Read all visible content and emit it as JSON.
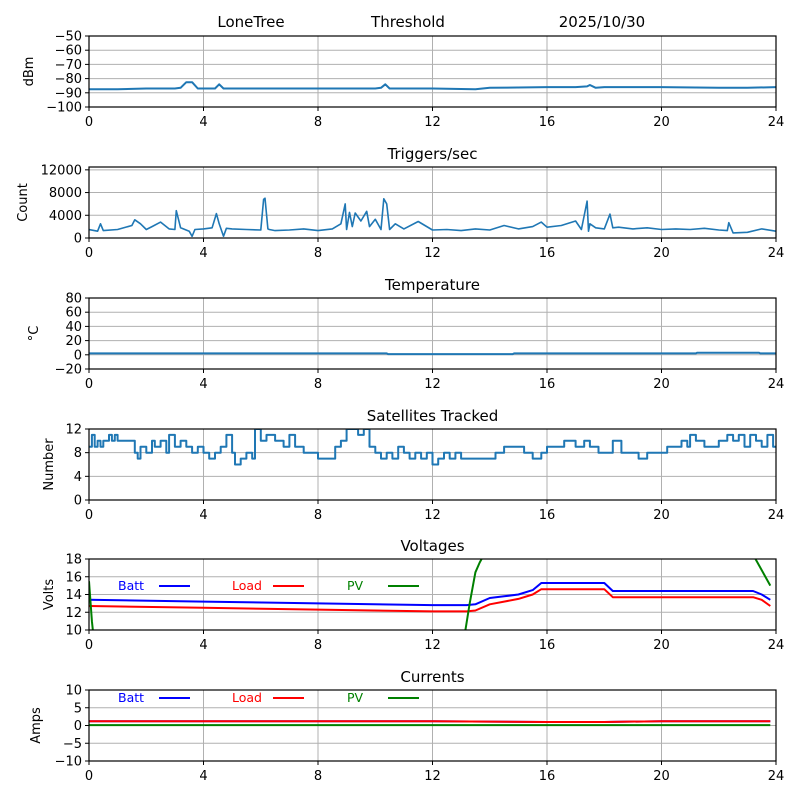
{
  "header": {
    "station": "LoneTree",
    "mode": "Threshold",
    "date": "2025/10/30"
  },
  "colors": {
    "series_default": "#1f77b4",
    "batt": "#0000ff",
    "load": "#ff0000",
    "pv": "#008000",
    "grid": "#b0b0b0"
  },
  "chart_data": [
    {
      "type": "line",
      "id": "threshold",
      "title": "",
      "xlabel": "",
      "ylabel": "dBm",
      "xlim": [
        0,
        24
      ],
      "ylim": [
        -100,
        -50
      ],
      "xticks": [
        0,
        4,
        8,
        12,
        16,
        20,
        24
      ],
      "yticks": [
        -100,
        -90,
        -80,
        -70,
        -60,
        -50
      ],
      "ytick_labels": [
        "−100",
        "−90",
        "−80",
        "−70",
        "−60",
        "−50"
      ],
      "grid": true,
      "series": [
        {
          "name": "Threshold",
          "color": "#1f77b4",
          "x": [
            0,
            1,
            2,
            3,
            3.2,
            3.4,
            3.6,
            3.8,
            4.4,
            4.55,
            4.7,
            6,
            8,
            10,
            10.2,
            10.35,
            10.5,
            12,
            13.5,
            14,
            16,
            17,
            17.4,
            17.5,
            17.7,
            18,
            20,
            22,
            23,
            24
          ],
          "y": [
            -87.5,
            -87.5,
            -87,
            -87,
            -86.5,
            -82.5,
            -82.5,
            -87,
            -87,
            -84,
            -87,
            -87,
            -87,
            -87,
            -86.5,
            -84,
            -87,
            -87,
            -87.5,
            -86.5,
            -86,
            -86,
            -85.5,
            -84.5,
            -86.5,
            -86,
            -86,
            -86.5,
            -86.5,
            -86
          ]
        }
      ]
    },
    {
      "type": "line",
      "id": "triggers",
      "title": "Triggers/sec",
      "xlabel": "",
      "ylabel": "Count",
      "xlim": [
        0,
        24
      ],
      "ylim": [
        0,
        12500
      ],
      "xticks": [
        0,
        4,
        8,
        12,
        16,
        20,
        24
      ],
      "yticks": [
        0,
        4000,
        8000,
        12000
      ],
      "ytick_labels": [
        "0",
        "4000",
        "8000",
        "12000"
      ],
      "grid": true,
      "series": [
        {
          "name": "Triggers",
          "color": "#1f77b4",
          "x": [
            0,
            0.3,
            0.4,
            0.5,
            1,
            1.5,
            1.6,
            1.8,
            2.0,
            2.2,
            2.5,
            2.8,
            3.0,
            3.05,
            3.2,
            3.5,
            3.6,
            3.7,
            4.0,
            4.3,
            4.45,
            4.55,
            4.7,
            4.8,
            5.0,
            5.5,
            6.0,
            6.1,
            6.15,
            6.25,
            6.3,
            6.5,
            7.0,
            7.5,
            8.0,
            8.5,
            8.8,
            8.95,
            9.0,
            9.1,
            9.2,
            9.3,
            9.5,
            9.7,
            9.8,
            10.0,
            10.2,
            10.3,
            10.4,
            10.5,
            10.7,
            11.0,
            11.5,
            12.0,
            12.5,
            13.0,
            13.5,
            14.0,
            14.5,
            15.0,
            15.5,
            15.8,
            16.0,
            16.5,
            17.0,
            17.2,
            17.4,
            17.45,
            17.5,
            17.7,
            18.0,
            18.2,
            18.3,
            18.5,
            19.0,
            19.5,
            20.0,
            20.5,
            21.0,
            21.5,
            22.0,
            22.3,
            22.35,
            22.5,
            23.0,
            23.5,
            24.0
          ],
          "y": [
            1500,
            1200,
            2500,
            1300,
            1500,
            2200,
            3200,
            2500,
            1500,
            2000,
            2800,
            1600,
            1500,
            4800,
            1800,
            1200,
            300,
            1500,
            1600,
            1800,
            4300,
            2500,
            300,
            1700,
            1600,
            1500,
            1400,
            6800,
            7000,
            1600,
            1500,
            1300,
            1400,
            1600,
            1300,
            1600,
            2500,
            6000,
            1500,
            4500,
            2000,
            4400,
            3000,
            4700,
            2000,
            3300,
            1500,
            6900,
            6000,
            1500,
            2500,
            1600,
            2900,
            1400,
            1500,
            1300,
            1600,
            1400,
            2200,
            1600,
            2000,
            2800,
            1900,
            2200,
            3000,
            1500,
            6500,
            1200,
            2500,
            1800,
            1600,
            4200,
            1800,
            1900,
            1600,
            1800,
            1500,
            1600,
            1500,
            1700,
            1400,
            1300,
            2700,
            900,
            1000,
            1600,
            1200
          ]
        }
      ]
    },
    {
      "type": "line",
      "id": "temperature",
      "title": "Temperature",
      "xlabel": "",
      "ylabel": "°C",
      "xlim": [
        0,
        24
      ],
      "ylim": [
        -20,
        80
      ],
      "xticks": [
        0,
        4,
        8,
        12,
        16,
        20,
        24
      ],
      "yticks": [
        -20,
        0,
        20,
        40,
        60,
        80
      ],
      "ytick_labels": [
        "−20",
        "0",
        "20",
        "40",
        "60",
        "80"
      ],
      "grid": true,
      "series": [
        {
          "name": "Temperature",
          "color": "#1f77b4",
          "x": [
            0,
            10.4,
            10.45,
            14.8,
            14.85,
            21.2,
            21.25,
            23.4,
            23.45,
            24
          ],
          "y": [
            2,
            2,
            1,
            1,
            2,
            2,
            3,
            3,
            2,
            2
          ]
        }
      ]
    },
    {
      "type": "line",
      "id": "satellites",
      "title": "Satellites Tracked",
      "xlabel": "",
      "ylabel": "Number",
      "xlim": [
        0,
        24
      ],
      "ylim": [
        0,
        12
      ],
      "xticks": [
        0,
        4,
        8,
        12,
        16,
        20,
        24
      ],
      "yticks": [
        0,
        4,
        8,
        12
      ],
      "ytick_labels": [
        "0",
        "4",
        "8",
        "12"
      ],
      "grid": true,
      "series": [
        {
          "name": "Satellites",
          "color": "#1f77b4",
          "x": [
            0,
            0.1,
            0.2,
            0.3,
            0.4,
            0.5,
            0.7,
            0.8,
            0.9,
            1.0,
            1.1,
            1.5,
            1.6,
            1.7,
            1.8,
            2.0,
            2.2,
            2.3,
            2.5,
            2.7,
            2.8,
            3.0,
            3.2,
            3.4,
            3.6,
            3.8,
            4.0,
            4.2,
            4.4,
            4.6,
            4.8,
            5.0,
            5.1,
            5.3,
            5.5,
            5.7,
            5.8,
            6.0,
            6.2,
            6.5,
            6.8,
            7.0,
            7.2,
            7.5,
            7.8,
            8.0,
            8.2,
            8.4,
            8.6,
            8.8,
            9.0,
            9.4,
            9.6,
            9.8,
            10.0,
            10.2,
            10.4,
            10.6,
            10.8,
            11.0,
            11.2,
            11.4,
            11.6,
            11.8,
            12.0,
            12.2,
            12.4,
            12.6,
            12.8,
            13.0,
            13.5,
            14.0,
            14.2,
            14.5,
            15.0,
            15.2,
            15.5,
            15.8,
            16.0,
            16.3,
            16.6,
            17.0,
            17.3,
            17.5,
            17.8,
            18.0,
            18.3,
            18.6,
            19.0,
            19.2,
            19.5,
            20.0,
            20.2,
            20.5,
            20.7,
            20.9,
            21.0,
            21.2,
            21.5,
            22.0,
            22.3,
            22.5,
            22.7,
            22.9,
            23.1,
            23.3,
            23.5,
            23.7,
            23.9,
            24.0
          ],
          "y": [
            9,
            11,
            9,
            10,
            9,
            10,
            11,
            10,
            11,
            10,
            10,
            10,
            8,
            7,
            9,
            8,
            10,
            9,
            10,
            8,
            11,
            9,
            10,
            9,
            8,
            9,
            8,
            7,
            8,
            9,
            11,
            8,
            6,
            7,
            8,
            7,
            12,
            10,
            11,
            10,
            9,
            11,
            9,
            8,
            8,
            7,
            7,
            7,
            9,
            10,
            12,
            11,
            12,
            9,
            8,
            7,
            8,
            7,
            9,
            8,
            7,
            8,
            7,
            8,
            6,
            7,
            8,
            7,
            8,
            7,
            7,
            7,
            8,
            9,
            9,
            8,
            7,
            8,
            9,
            9,
            10,
            9,
            10,
            9,
            8,
            8,
            10,
            8,
            8,
            7,
            8,
            8,
            9,
            9,
            10,
            9,
            11,
            10,
            9,
            10,
            11,
            10,
            11,
            9,
            11,
            10,
            9,
            11,
            9,
            9
          ]
        }
      ]
    },
    {
      "type": "line",
      "id": "voltages",
      "title": "Voltages",
      "xlabel": "",
      "ylabel": "Volts",
      "xlim": [
        0,
        24
      ],
      "ylim": [
        10,
        18
      ],
      "xticks": [
        0,
        4,
        8,
        12,
        16,
        20,
        24
      ],
      "yticks": [
        10,
        12,
        14,
        16,
        18
      ],
      "ytick_labels": [
        "10",
        "12",
        "14",
        "16",
        "18"
      ],
      "grid": true,
      "legend": {
        "placement": "top-inline",
        "entries": [
          "Batt",
          "Load",
          "PV"
        ]
      },
      "series": [
        {
          "name": "Batt",
          "color": "#0000ff",
          "x": [
            0,
            4,
            8,
            12,
            13.2,
            13.5,
            14.0,
            14.5,
            15.0,
            15.5,
            15.8,
            18.0,
            18.3,
            23.2,
            23.5,
            23.8
          ],
          "y": [
            13.4,
            13.2,
            13.0,
            12.8,
            12.8,
            12.9,
            13.6,
            13.8,
            14.0,
            14.5,
            15.3,
            15.3,
            14.4,
            14.4,
            14.0,
            13.4
          ]
        },
        {
          "name": "Load",
          "color": "#ff0000",
          "x": [
            0,
            4,
            8,
            12,
            13.2,
            13.5,
            14.0,
            14.5,
            15.0,
            15.5,
            15.8,
            18.0,
            18.3,
            23.2,
            23.5,
            23.8
          ],
          "y": [
            12.7,
            12.5,
            12.3,
            12.1,
            12.1,
            12.2,
            12.9,
            13.2,
            13.5,
            14.0,
            14.6,
            14.6,
            13.7,
            13.7,
            13.4,
            12.7
          ]
        },
        {
          "name": "PV",
          "color": "#008000",
          "x": [
            0,
            0.1,
            0.15,
            null,
            13.1,
            13.3,
            13.5,
            13.65,
            13.8,
            null,
            23.25,
            23.8
          ],
          "y": [
            15.5,
            11.0,
            9.5,
            null,
            9.0,
            13.0,
            16.5,
            17.6,
            18.5,
            null,
            18.2,
            15.0
          ]
        }
      ]
    },
    {
      "type": "line",
      "id": "currents",
      "title": "Currents",
      "xlabel": "",
      "ylabel": "Amps",
      "xlim": [
        0,
        24
      ],
      "ylim": [
        -10,
        10
      ],
      "xticks": [
        0,
        4,
        8,
        12,
        16,
        20,
        24
      ],
      "yticks": [
        -10,
        -5,
        0,
        5,
        10
      ],
      "ytick_labels": [
        "−10",
        "−5",
        "0",
        "5",
        "10"
      ],
      "grid": true,
      "legend": {
        "placement": "top-inline",
        "entries": [
          "Batt",
          "Load",
          "PV"
        ]
      },
      "series": [
        {
          "name": "Batt",
          "color": "#0000ff",
          "x": [
            0,
            12,
            16,
            18,
            20,
            23.8
          ],
          "y": [
            1.2,
            1.2,
            1.0,
            1.0,
            1.2,
            1.2
          ]
        },
        {
          "name": "Load",
          "color": "#ff0000",
          "x": [
            0,
            12,
            16,
            18,
            20,
            23.8
          ],
          "y": [
            1.2,
            1.2,
            1.0,
            1.0,
            1.2,
            1.2
          ]
        },
        {
          "name": "PV",
          "color": "#008000",
          "x": [
            0,
            23.8
          ],
          "y": [
            0.1,
            0.1
          ]
        }
      ]
    }
  ]
}
